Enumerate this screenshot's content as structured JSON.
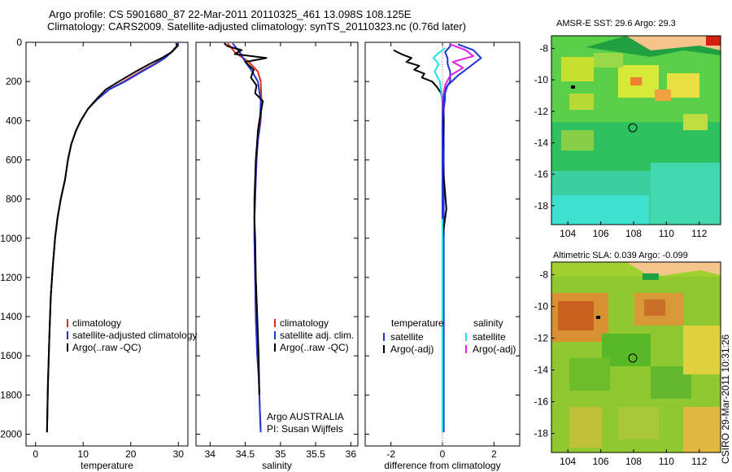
{
  "header": {
    "title_line1": "Argo profile: CS 5901680_87 22-Mar-2011 20110325_461 13.098S 108.125E",
    "title_line2": "Climatology: CARS2009. Satellite-adjusted climatology: synTS_20110323.nc (0.76d later)"
  },
  "side_credit": "CSIRO 29-Mar-2011 10:31:26",
  "colors": {
    "red": "#dd2a1b",
    "blue": "#1f35d6",
    "black": "#000000",
    "cyan": "#22e0e0",
    "magenta": "#e020e0"
  },
  "chart_data": [
    {
      "type": "line",
      "id": "temperature",
      "xlabel": "temperature",
      "ylabel": "",
      "xlim": [
        -2,
        32
      ],
      "ylim": [
        2060,
        0
      ],
      "xticks": [
        0,
        10,
        20,
        30
      ],
      "yticks": [
        0,
        200,
        400,
        600,
        800,
        1000,
        1200,
        1400,
        1600,
        1800,
        2000
      ],
      "legend": [
        "climatology",
        "satellite-adjusted climatology",
        "Argo(..raw -QC)"
      ],
      "series": [
        {
          "name": "climatology",
          "color": "red",
          "x": [
            29.8,
            29.6,
            28.5,
            27,
            25,
            22,
            18.5,
            15.5,
            13,
            11,
            9.5,
            8.5,
            7.5,
            6.8,
            6.2,
            5.3,
            4.6,
            4.1,
            3.6,
            3.2,
            2.9,
            2.6,
            2.4
          ],
          "y": [
            5,
            20,
            50,
            80,
            110,
            150,
            200,
            240,
            290,
            340,
            400,
            450,
            520,
            600,
            700,
            800,
            900,
            1000,
            1150,
            1300,
            1500,
            1750,
            1990
          ]
        },
        {
          "name": "satellite-adjusted climatology",
          "color": "blue",
          "x": [
            30.0,
            29.7,
            28.6,
            27.2,
            25.2,
            22.3,
            18.8,
            15.5,
            13,
            11,
            9.5,
            8.5,
            7.5,
            6.8,
            6.2,
            5.3,
            4.6,
            4.1,
            3.6,
            3.2,
            2.9,
            2.6,
            2.4
          ],
          "y": [
            5,
            20,
            50,
            80,
            110,
            150,
            200,
            240,
            290,
            340,
            400,
            450,
            520,
            600,
            700,
            800,
            900,
            1000,
            1150,
            1300,
            1500,
            1750,
            1990
          ]
        },
        {
          "name": "Argo(..raw -QC)",
          "color": "black",
          "x": [
            29.5,
            29.8,
            28.6,
            26.5,
            24,
            21,
            17.5,
            14.8,
            12.8,
            11,
            9.5,
            8.5,
            7.5,
            6.8,
            6.2,
            5.3,
            4.6,
            4.1,
            3.6,
            3.2,
            2.9,
            2.6,
            2.4
          ],
          "y": [
            5,
            20,
            50,
            80,
            110,
            150,
            200,
            240,
            290,
            340,
            400,
            450,
            520,
            600,
            700,
            800,
            900,
            1000,
            1150,
            1300,
            1500,
            1750,
            1990
          ]
        }
      ]
    },
    {
      "type": "line",
      "id": "salinity",
      "xlabel": "salinity",
      "xlim": [
        33.8,
        36.1
      ],
      "ylim": [
        2060,
        0
      ],
      "xticks": [
        34,
        34.5,
        35,
        35.5,
        36
      ],
      "legend": [
        "climatology",
        "satellite adj. clim.",
        "Argo(..raw -QC)"
      ],
      "footer": [
        "Argo AUSTRALIA",
        "PI: Susan Wijffels"
      ],
      "series": [
        {
          "name": "climatology",
          "color": "red",
          "x": [
            34.25,
            34.35,
            34.55,
            34.68,
            34.72,
            34.73,
            34.72,
            34.7,
            34.68,
            34.66,
            34.65,
            34.64,
            34.63,
            34.63,
            34.64,
            34.65,
            34.67,
            34.69,
            34.7,
            34.71,
            34.72
          ],
          "y": [
            5,
            50,
            100,
            150,
            200,
            300,
            400,
            450,
            500,
            600,
            700,
            800,
            900,
            1000,
            1200,
            1400,
            1600,
            1700,
            1800,
            1900,
            1990
          ]
        },
        {
          "name": "satellite adj. clim.",
          "color": "blue",
          "x": [
            34.32,
            34.42,
            34.5,
            34.6,
            34.68,
            34.72,
            34.71,
            34.7,
            34.68,
            34.66,
            34.65,
            34.64,
            34.63,
            34.63,
            34.64,
            34.65,
            34.67,
            34.69,
            34.7,
            34.71,
            34.72
          ],
          "y": [
            5,
            50,
            100,
            150,
            200,
            300,
            400,
            450,
            500,
            600,
            700,
            800,
            900,
            1000,
            1200,
            1400,
            1600,
            1700,
            1800,
            1900,
            1990
          ]
        },
        {
          "name": "Argo(..raw -QC)",
          "color": "black",
          "x": [
            34.2,
            34.25,
            34.45,
            34.35,
            34.8,
            34.5,
            34.62,
            34.58,
            34.66,
            34.64,
            34.75,
            34.7,
            34.68,
            34.67,
            34.65,
            34.64,
            34.63,
            34.63,
            34.64,
            34.65,
            34.67,
            34.69,
            34.7
          ],
          "y": [
            5,
            20,
            40,
            60,
            80,
            100,
            140,
            180,
            220,
            260,
            300,
            400,
            450,
            500,
            600,
            700,
            800,
            900,
            1000,
            1200,
            1400,
            1600,
            1800
          ]
        }
      ]
    },
    {
      "type": "line",
      "id": "difference",
      "xlabel": "difference from climatology",
      "xlim": [
        -3,
        3
      ],
      "ylim": [
        2060,
        0
      ],
      "xticks": [
        -2,
        0,
        2
      ],
      "legend_left_title": "temperature",
      "legend_right_title": "salinity",
      "legend": [
        "satellite",
        "Argo(-adj)",
        "satellite",
        "Argo(-adj)"
      ],
      "series": [
        {
          "name": "temperature satellite",
          "color": "blue",
          "x": [
            0.3,
            0.3,
            0.1,
            0.2,
            0.2,
            0.3,
            0.3,
            0.1,
            0.1,
            0.05,
            0.05,
            0.05,
            0.05,
            0.05
          ],
          "y": [
            5,
            20,
            50,
            80,
            110,
            150,
            200,
            240,
            290,
            340,
            600,
            1000,
            1500,
            1990
          ]
        },
        {
          "name": "temperature Argo(-adj)",
          "color": "black",
          "x": [
            -1.9,
            -1.6,
            -1.2,
            -1.4,
            -0.9,
            -1.1,
            -0.7,
            -0.8,
            -0.4,
            -0.2,
            -0.05,
            0.0,
            0.05,
            0.0,
            0.15,
            0.0,
            0.0,
            0.0
          ],
          "y": [
            40,
            60,
            80,
            100,
            120,
            140,
            160,
            180,
            200,
            230,
            260,
            300,
            400,
            600,
            850,
            1000,
            1500,
            1990
          ]
        },
        {
          "name": "salinity satellite",
          "color": "cyan",
          "x": [
            0.1,
            -0.2,
            -0.35,
            -0.15,
            -0.3,
            -0.1,
            0.0,
            0.0,
            0.0,
            0.0
          ],
          "y": [
            30,
            60,
            80,
            110,
            150,
            200,
            300,
            600,
            1200,
            1990
          ]
        },
        {
          "name": "salinity Argo(-adj)",
          "color": "magenta",
          "x": [
            0.3,
            0.9,
            1.2,
            0.4,
            0.8,
            0.3,
            0.1,
            0.0,
            0.0,
            0.0
          ],
          "y": [
            10,
            40,
            70,
            100,
            130,
            170,
            220,
            300,
            500,
            900
          ]
        },
        {
          "name": "salinity difference (blue)",
          "color": "blue",
          "x": [
            0.6,
            1.2,
            1.5,
            1.0,
            0.6,
            0.2,
            0.05,
            0.0,
            0.0
          ],
          "y": [
            10,
            40,
            80,
            130,
            170,
            220,
            280,
            400,
            900
          ]
        }
      ]
    },
    {
      "type": "heatmap",
      "id": "sst-map",
      "title": "AMSR-E SST: 29.6 Argo: 29.3",
      "xlim": [
        103,
        113.3
      ],
      "ylim": [
        -19.2,
        -7.2
      ],
      "xticks": [
        104,
        106,
        108,
        110,
        112
      ],
      "yticks": [
        -8,
        -10,
        -12,
        -14,
        -16,
        -18
      ],
      "marker": {
        "lon": 108.125,
        "lat": -13.098
      }
    },
    {
      "type": "heatmap",
      "id": "sla-map",
      "title": "Altimetric SLA: 0.039 Argo: -0.099",
      "xlim": [
        103,
        113.3
      ],
      "ylim": [
        -19.2,
        -7.2
      ],
      "xticks": [
        104,
        106,
        108,
        110,
        112
      ],
      "yticks": [
        -8,
        -10,
        -12,
        -14,
        -16,
        -18
      ],
      "marker": {
        "lon": 108.125,
        "lat": -13.098
      }
    }
  ]
}
